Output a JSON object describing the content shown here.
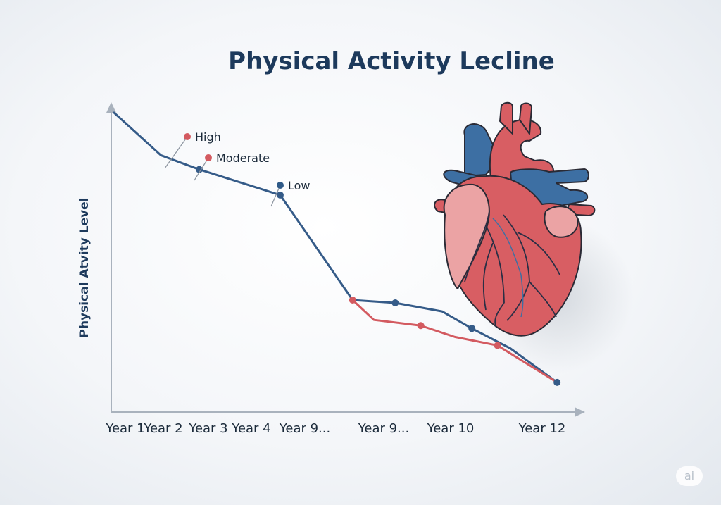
{
  "chart_data": {
    "type": "line",
    "title": "Physical Activity Lecline",
    "xlabel": "",
    "ylabel": "Physical Atvity Level",
    "categories": [
      "Year 1",
      "Year 2",
      "Year 3",
      "Year 4",
      "Year 9...",
      "",
      "Year 9...",
      "",
      "Year 10",
      "",
      "Year 12"
    ],
    "ylim": [
      0,
      100
    ],
    "grid": false,
    "legend": [
      {
        "label": "High",
        "color": "#d35a60"
      },
      {
        "label": "Moderate",
        "color": "#d35a60"
      },
      {
        "label": "Low",
        "color": "#2f5a88"
      }
    ],
    "series": [
      {
        "color": "#355b88",
        "x": [
          0,
          1.1,
          2,
          3.9,
          5.6,
          6.6,
          7.7,
          8.4,
          9.3,
          10.4
        ],
        "values": [
          100,
          85,
          80,
          71,
          34,
          33,
          30,
          24,
          17,
          5
        ]
      },
      {
        "color": "#d35a60",
        "x": [
          5.6,
          6.1,
          7.2,
          8.0,
          9.0,
          10.4
        ],
        "values": [
          34,
          27,
          25,
          21,
          18,
          5
        ]
      }
    ],
    "markers": [
      {
        "series": 0,
        "index": 2
      },
      {
        "series": 0,
        "index": 3
      },
      {
        "series": 0,
        "index": 5
      },
      {
        "series": 0,
        "index": 7
      },
      {
        "series": 0,
        "index": 9
      },
      {
        "series": 1,
        "index": 0
      },
      {
        "series": 1,
        "index": 2
      },
      {
        "series": 1,
        "index": 4
      }
    ]
  },
  "watermark": "ai",
  "illustration": "heart-illustration"
}
